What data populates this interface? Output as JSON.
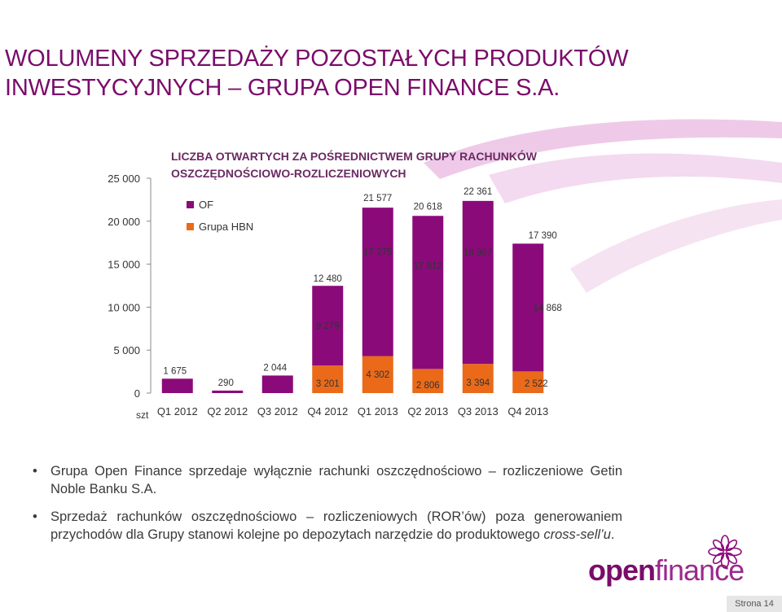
{
  "slide": {
    "title_line1": "WOLUMENY SPRZEDAŻY POZOSTAŁYCH PRODUKTÓW",
    "title_line2": "INWESTYCYJNYCH – GRUPA OPEN FINANCE S.A.",
    "page": "Strona 14",
    "colors": {
      "title": "#7a0c6a",
      "of": "#8b0a7a",
      "hbn": "#ea6a1a",
      "swoosh": "#e9b8e0"
    }
  },
  "chart_data": {
    "type": "bar",
    "stacked": true,
    "title_line1": "LICZBA OTWARTYCH ZA POŚREDNICTWEM GRUPY RACHUNKÓW",
    "title_line2": "OSZCZĘDNOŚCIOWO-ROZLICZENIOWYCH",
    "unit_label": "szt",
    "categories": [
      "Q1 2012",
      "Q2 2012",
      "Q3 2012",
      "Q4 2012",
      "Q1 2013",
      "Q2 2013",
      "Q3 2013",
      "Q4 2013"
    ],
    "series": [
      {
        "name": "OF",
        "color": "#8b0a7a",
        "values": [
          1675,
          290,
          2044,
          9279,
          17275,
          17812,
          18967,
          14868
        ]
      },
      {
        "name": "Grupa HBN",
        "color": "#ea6a1a",
        "values": [
          0,
          0,
          0,
          3201,
          4302,
          2806,
          3394,
          2522
        ]
      }
    ],
    "totals": [
      null,
      null,
      null,
      12480,
      21577,
      20618,
      22361,
      17390
    ],
    "labels_of": [
      "1 675",
      "290",
      "2 044",
      "9 279",
      "17 275",
      "17 812",
      "18 967",
      "14 868"
    ],
    "labels_hbn": [
      null,
      null,
      null,
      "3 201",
      "4 302",
      "2 806",
      "3 394",
      "2 522"
    ],
    "labels_total": [
      null,
      null,
      null,
      "12 480",
      "21 577",
      "20 618",
      "22 361",
      "17 390"
    ],
    "y_ticks": [
      0,
      5000,
      10000,
      15000,
      20000,
      25000
    ],
    "y_tick_labels": [
      "0",
      "5 000",
      "10 000",
      "15 000",
      "20 000",
      "25 000"
    ],
    "ylim": [
      0,
      25000
    ],
    "grid": false,
    "legend_position": "top-left"
  },
  "bullets": [
    {
      "text": "Grupa Open Finance sprzedaje wyłącznie rachunki oszczędnościowo – rozliczeniowe Getin Noble Banku S.A."
    },
    {
      "text_before": "Sprzedaż rachunków oszczędnościowo – rozliczeniowych (ROR’ów) poza generowaniem przychodów dla Grupy stanowi kolejne po depozytach narzędzie do produktowego ",
      "text_italic": "cross-sell’u",
      "text_after": "."
    }
  ],
  "logo": {
    "word1": "open",
    "word2": "finance"
  }
}
